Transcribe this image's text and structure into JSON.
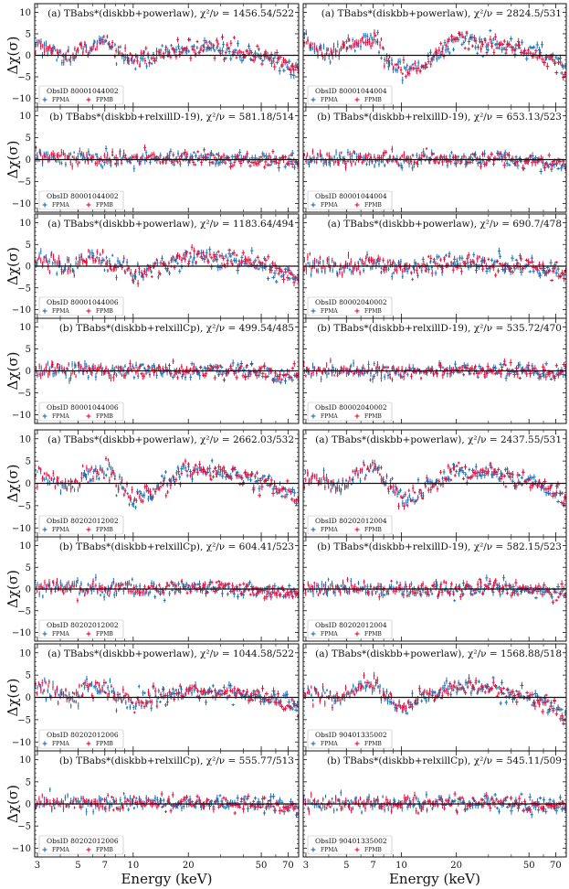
{
  "figure": {
    "xlabel": "Energy (keV)",
    "ylabel": "Δχ(σ)",
    "x_ticks": [
      "3",
      "5",
      "7",
      "10",
      "20",
      "50",
      "70"
    ],
    "y_ticks": [
      "10",
      "5",
      "0",
      "-5",
      "-10"
    ],
    "legend": {
      "series_a": "FPMA",
      "series_b": "FPMB"
    },
    "colors": {
      "FPMA": "#1f6fb4",
      "FPMB": "#e0113c"
    }
  },
  "chart_data": [
    {
      "type": "scatter",
      "panel_row": 1,
      "panel_col": 1,
      "annotation": "(a) TBabs*(diskbb+powerlaw), χ²/ν = 1456.54/522",
      "obsid": "ObsID 80001044002",
      "xlim": [
        2.9,
        80
      ],
      "ylim": [
        -12,
        12
      ],
      "residual_shape": [
        [
          3,
          2.5
        ],
        [
          4,
          0
        ],
        [
          5.5,
          1.5
        ],
        [
          7,
          3.5
        ],
        [
          8,
          1
        ],
        [
          10,
          -1
        ],
        [
          15,
          0.5
        ],
        [
          20,
          2
        ],
        [
          30,
          1.5
        ],
        [
          50,
          0
        ],
        [
          70,
          -2
        ],
        [
          80,
          -3
        ]
      ],
      "series": [
        {
          "name": "FPMA"
        },
        {
          "name": "FPMB"
        }
      ]
    },
    {
      "type": "scatter",
      "panel_row": 1,
      "panel_col": 2,
      "annotation": "(a) TBabs*(diskbb+powerlaw), χ²/ν = 2824.5/531",
      "obsid": "ObsID 80001044004",
      "xlim": [
        2.9,
        80
      ],
      "ylim": [
        -12,
        12
      ],
      "residual_shape": [
        [
          3,
          3
        ],
        [
          4,
          0
        ],
        [
          5.5,
          2.5
        ],
        [
          7,
          4
        ],
        [
          8.5,
          -1
        ],
        [
          10,
          -3
        ],
        [
          12,
          -3.5
        ],
        [
          15,
          0
        ],
        [
          20,
          3.5
        ],
        [
          30,
          3
        ],
        [
          50,
          1
        ],
        [
          70,
          -1.5
        ],
        [
          80,
          -3
        ]
      ],
      "series": [
        {
          "name": "FPMA"
        },
        {
          "name": "FPMB"
        }
      ]
    },
    {
      "type": "scatter",
      "panel_row": 2,
      "panel_col": 1,
      "annotation": "(b) TBabs*(diskbb+relxillD-19), χ²/ν = 581.18/514",
      "obsid": "ObsID 80001044002",
      "xlim": [
        2.9,
        80
      ],
      "ylim": [
        -12,
        12
      ],
      "residual_shape": [
        [
          3,
          0.5
        ],
        [
          10,
          0
        ],
        [
          30,
          0.3
        ],
        [
          80,
          -0.5
        ]
      ],
      "series": [
        {
          "name": "FPMA"
        },
        {
          "name": "FPMB"
        }
      ]
    },
    {
      "type": "scatter",
      "panel_row": 2,
      "panel_col": 2,
      "annotation": "(b) TBabs*(diskbb+relxillD-19), χ²/ν = 653.13/523",
      "obsid": "ObsID 80001044004",
      "xlim": [
        2.9,
        80
      ],
      "ylim": [
        -12,
        12
      ],
      "residual_shape": [
        [
          3,
          0.3
        ],
        [
          10,
          0
        ],
        [
          30,
          0.3
        ],
        [
          80,
          -1
        ]
      ],
      "series": [
        {
          "name": "FPMA"
        },
        {
          "name": "FPMB"
        }
      ]
    },
    {
      "type": "scatter",
      "panel_row": 3,
      "panel_col": 1,
      "annotation": "(a) TBabs*(diskbb+powerlaw), χ²/ν = 1183.64/494",
      "obsid": "ObsID 80001044006",
      "xlim": [
        2.9,
        80
      ],
      "ylim": [
        -12,
        12
      ],
      "residual_shape": [
        [
          3,
          1.5
        ],
        [
          4.5,
          0
        ],
        [
          6,
          2
        ],
        [
          8,
          0.5
        ],
        [
          10,
          -1.5
        ],
        [
          15,
          0
        ],
        [
          20,
          2
        ],
        [
          30,
          1.5
        ],
        [
          50,
          0
        ],
        [
          70,
          -1.5
        ],
        [
          80,
          -3
        ]
      ],
      "series": [
        {
          "name": "FPMA"
        },
        {
          "name": "FPMB"
        }
      ]
    },
    {
      "type": "scatter",
      "panel_row": 3,
      "panel_col": 2,
      "annotation": "(a) TBabs*(diskbb+powerlaw), χ²/ν = 690.7/478",
      "obsid": "ObsID 80002040002",
      "xlim": [
        2.9,
        80
      ],
      "ylim": [
        -12,
        12
      ],
      "residual_shape": [
        [
          3,
          0.5
        ],
        [
          5,
          -0.5
        ],
        [
          7,
          1
        ],
        [
          10,
          -0.5
        ],
        [
          20,
          0.8
        ],
        [
          50,
          0
        ],
        [
          80,
          -1.5
        ]
      ],
      "series": [
        {
          "name": "FPMA"
        },
        {
          "name": "FPMB"
        }
      ]
    },
    {
      "type": "scatter",
      "panel_row": 4,
      "panel_col": 1,
      "annotation": "(b) TBabs*(diskbb+relxillCp), χ²/ν = 499.54/485",
      "obsid": "ObsID 80001044006",
      "xlim": [
        2.9,
        80
      ],
      "ylim": [
        -12,
        12
      ],
      "residual_shape": [
        [
          3,
          0.2
        ],
        [
          10,
          0
        ],
        [
          30,
          0.2
        ],
        [
          80,
          -1
        ]
      ],
      "series": [
        {
          "name": "FPMA"
        },
        {
          "name": "FPMB"
        }
      ]
    },
    {
      "type": "scatter",
      "panel_row": 4,
      "panel_col": 2,
      "annotation": "(b) TBabs*(diskbb+relxillD-19), χ²/ν = 535.72/470",
      "obsid": "ObsID 80002040002",
      "xlim": [
        2.9,
        80
      ],
      "ylim": [
        -12,
        12
      ],
      "residual_shape": [
        [
          3,
          0.2
        ],
        [
          10,
          0
        ],
        [
          30,
          0.2
        ],
        [
          80,
          -0.5
        ]
      ],
      "series": [
        {
          "name": "FPMA"
        },
        {
          "name": "FPMB"
        }
      ]
    },
    {
      "type": "scatter",
      "panel_row": 5,
      "panel_col": 1,
      "annotation": "(a) TBabs*(diskbb+powerlaw), χ²/ν = 2662.03/532",
      "obsid": "ObsID 80202012002",
      "xlim": [
        2.9,
        80
      ],
      "ylim": [
        -12,
        12
      ],
      "residual_shape": [
        [
          3,
          2
        ],
        [
          4.5,
          -0.5
        ],
        [
          6,
          2.5
        ],
        [
          7,
          3.5
        ],
        [
          8.5,
          0
        ],
        [
          10,
          -3
        ],
        [
          12,
          -2.5
        ],
        [
          15,
          0
        ],
        [
          20,
          3.5
        ],
        [
          30,
          2.5
        ],
        [
          50,
          0.5
        ],
        [
          70,
          -2
        ],
        [
          80,
          -4
        ]
      ],
      "series": [
        {
          "name": "FPMA"
        },
        {
          "name": "FPMB"
        }
      ]
    },
    {
      "type": "scatter",
      "panel_row": 5,
      "panel_col": 2,
      "annotation": "(a) TBabs*(diskbb+powerlaw), χ²/ν = 2437.55/531",
      "obsid": "ObsID 80202012004",
      "xlim": [
        2.9,
        80
      ],
      "ylim": [
        -12,
        12
      ],
      "residual_shape": [
        [
          3,
          1.5
        ],
        [
          4.5,
          -0.5
        ],
        [
          6,
          2.5
        ],
        [
          7,
          3.5
        ],
        [
          8.5,
          0
        ],
        [
          10,
          -3
        ],
        [
          12,
          -2.5
        ],
        [
          15,
          0
        ],
        [
          20,
          3
        ],
        [
          30,
          2.5
        ],
        [
          50,
          0.5
        ],
        [
          70,
          -2
        ],
        [
          80,
          -4
        ]
      ],
      "series": [
        {
          "name": "FPMA"
        },
        {
          "name": "FPMB"
        }
      ]
    },
    {
      "type": "scatter",
      "panel_row": 6,
      "panel_col": 1,
      "annotation": "(b) TBabs*(diskbb+relxillCp), χ²/ν = 604.41/523",
      "obsid": "ObsID 80202012002",
      "xlim": [
        2.9,
        80
      ],
      "ylim": [
        -12,
        12
      ],
      "residual_shape": [
        [
          3,
          0.3
        ],
        [
          10,
          0
        ],
        [
          30,
          0.3
        ],
        [
          80,
          -1
        ]
      ],
      "series": [
        {
          "name": "FPMA"
        },
        {
          "name": "FPMB"
        }
      ]
    },
    {
      "type": "scatter",
      "panel_row": 6,
      "panel_col": 2,
      "annotation": "(b) TBabs*(diskbb+relxillD-19), χ²/ν = 582.15/523",
      "obsid": "ObsID 80202012004",
      "xlim": [
        2.9,
        80
      ],
      "ylim": [
        -12,
        12
      ],
      "residual_shape": [
        [
          3,
          0.2
        ],
        [
          10,
          0
        ],
        [
          30,
          0.3
        ],
        [
          80,
          -1
        ]
      ],
      "series": [
        {
          "name": "FPMA"
        },
        {
          "name": "FPMB"
        }
      ]
    },
    {
      "type": "scatter",
      "panel_row": 7,
      "panel_col": 1,
      "annotation": "(a) TBabs*(diskbb+powerlaw), χ²/ν = 1044.58/522",
      "obsid": "ObsID 80202012006",
      "xlim": [
        2.9,
        80
      ],
      "ylim": [
        -12,
        12
      ],
      "residual_shape": [
        [
          3,
          2.5
        ],
        [
          4.5,
          0
        ],
        [
          6,
          2.5
        ],
        [
          7,
          2
        ],
        [
          8.5,
          0
        ],
        [
          10,
          -1
        ],
        [
          15,
          0
        ],
        [
          20,
          1.5
        ],
        [
          30,
          1
        ],
        [
          50,
          0
        ],
        [
          70,
          -1
        ],
        [
          80,
          -2
        ]
      ],
      "series": [
        {
          "name": "FPMA"
        },
        {
          "name": "FPMB"
        }
      ]
    },
    {
      "type": "scatter",
      "panel_row": 7,
      "panel_col": 2,
      "annotation": "(a) TBabs*(diskbb+powerlaw), χ²/ν = 1568.88/518",
      "obsid": "ObsID 90401335002",
      "xlim": [
        2.9,
        80
      ],
      "ylim": [
        -12,
        12
      ],
      "residual_shape": [
        [
          3,
          1
        ],
        [
          4.5,
          0
        ],
        [
          6,
          2.5
        ],
        [
          7,
          3.5
        ],
        [
          8.5,
          0
        ],
        [
          10,
          -2
        ],
        [
          15,
          0.5
        ],
        [
          20,
          2.5
        ],
        [
          30,
          2
        ],
        [
          50,
          0
        ],
        [
          70,
          -2
        ],
        [
          80,
          -4
        ]
      ],
      "series": [
        {
          "name": "FPMA"
        },
        {
          "name": "FPMB"
        }
      ]
    },
    {
      "type": "scatter",
      "panel_row": 8,
      "panel_col": 1,
      "annotation": "(b) TBabs*(diskbb+relxillCp), χ²/ν = 555.77/513",
      "obsid": "ObsID 80202012006",
      "xlim": [
        2.9,
        80
      ],
      "ylim": [
        -12,
        12
      ],
      "residual_shape": [
        [
          3,
          0.3
        ],
        [
          10,
          0
        ],
        [
          30,
          0.2
        ],
        [
          80,
          -0.5
        ]
      ],
      "series": [
        {
          "name": "FPMA"
        },
        {
          "name": "FPMB"
        }
      ]
    },
    {
      "type": "scatter",
      "panel_row": 8,
      "panel_col": 2,
      "annotation": "(b) TBabs*(diskbb+relxillCp), χ²/ν = 545.11/509",
      "obsid": "ObsID 90401335002",
      "xlim": [
        2.9,
        80
      ],
      "ylim": [
        -12,
        12
      ],
      "residual_shape": [
        [
          3,
          0.2
        ],
        [
          10,
          0
        ],
        [
          30,
          0.2
        ],
        [
          80,
          -0.5
        ]
      ],
      "series": [
        {
          "name": "FPMA"
        },
        {
          "name": "FPMB"
        }
      ]
    }
  ]
}
